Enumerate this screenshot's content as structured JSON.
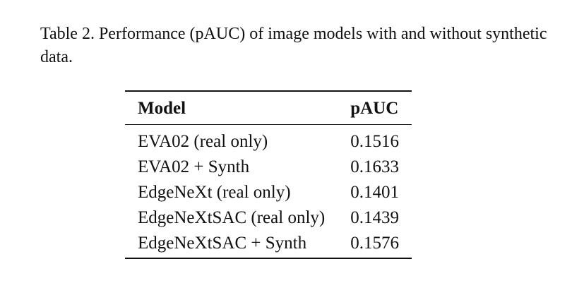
{
  "caption": "Table 2. Performance (pAUC) of image models with and without synthetic data.",
  "table": {
    "header": [
      "Model",
      "pAUC"
    ],
    "rows": [
      [
        "EVA02 (real only)",
        "0.1516"
      ],
      [
        "EVA02 + Synth",
        "0.1633"
      ],
      [
        "EdgeNeXt (real only)",
        "0.1401"
      ],
      [
        "EdgeNeXtSAC (real only)",
        "0.1439"
      ],
      [
        "EdgeNeXtSAC + Synth",
        "0.1576"
      ]
    ]
  }
}
